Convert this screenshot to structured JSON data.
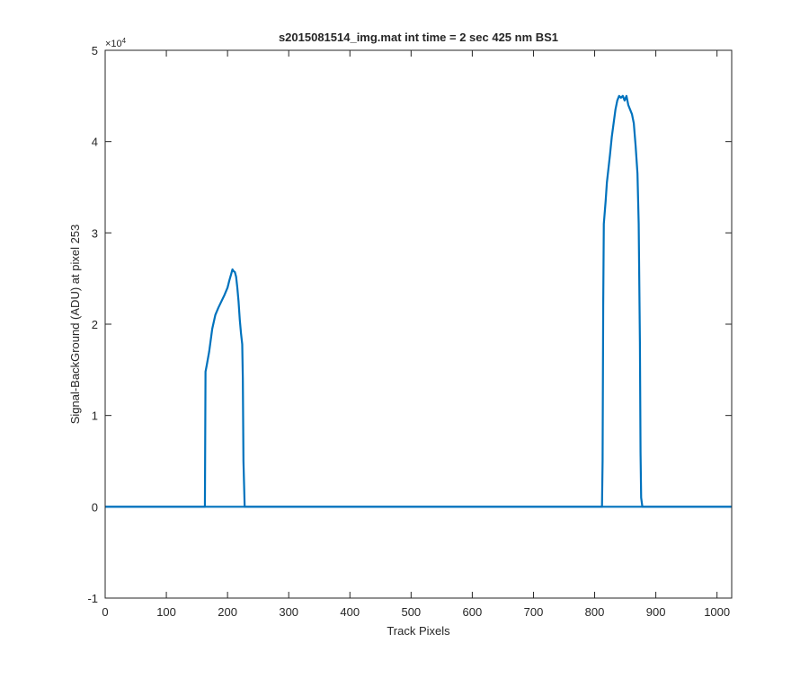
{
  "chart_data": {
    "type": "line",
    "title": "s2015081514_img.mat int time = 2 sec  425 nm BS1",
    "xlabel": "Track Pixels",
    "ylabel": "Signal-BackGround (ADU) at pixel 253",
    "y_exponent_label": "×10",
    "y_exponent_power": "4",
    "xlim": [
      0,
      1024
    ],
    "ylim": [
      -10000,
      50000
    ],
    "xticks": [
      0,
      100,
      200,
      300,
      400,
      500,
      600,
      700,
      800,
      900,
      1000
    ],
    "yticks": [
      -10000,
      0,
      10000,
      20000,
      30000,
      40000,
      50000
    ],
    "xtick_labels": [
      "0",
      "100",
      "200",
      "300",
      "400",
      "500",
      "600",
      "700",
      "800",
      "900",
      "1000"
    ],
    "ytick_labels": [
      "-1",
      "0",
      "1",
      "2",
      "3",
      "4",
      "5"
    ],
    "grid": false,
    "legend": "none",
    "series": [
      {
        "color": "#0072BD",
        "x": [
          0,
          163,
          164,
          166,
          170,
          175,
          180,
          185,
          190,
          195,
          200,
          203,
          206,
          208,
          210,
          212,
          214,
          216,
          218,
          220,
          222,
          224,
          225,
          226,
          228,
          1024
        ],
        "values": [
          0,
          0,
          14800,
          15500,
          17000,
          19500,
          21000,
          21800,
          22500,
          23200,
          24000,
          24800,
          25500,
          26000,
          25800,
          25700,
          25200,
          24000,
          22500,
          20500,
          19000,
          17800,
          14000,
          5000,
          0,
          0
        ]
      },
      {
        "color": "#0072BD",
        "x": [
          0,
          812,
          813,
          814,
          815,
          818,
          820,
          825,
          828,
          831,
          834,
          837,
          840,
          843,
          846,
          849,
          852,
          855,
          858,
          861,
          864,
          867,
          870,
          872,
          874,
          875,
          876,
          878,
          1024
        ],
        "values": [
          0,
          0,
          5000,
          22000,
          31000,
          33500,
          35500,
          38500,
          40500,
          42000,
          43500,
          44500,
          45000,
          44800,
          45000,
          44500,
          45000,
          44000,
          43500,
          43000,
          42000,
          39500,
          36500,
          31000,
          18000,
          6000,
          1000,
          0,
          0
        ]
      }
    ]
  }
}
